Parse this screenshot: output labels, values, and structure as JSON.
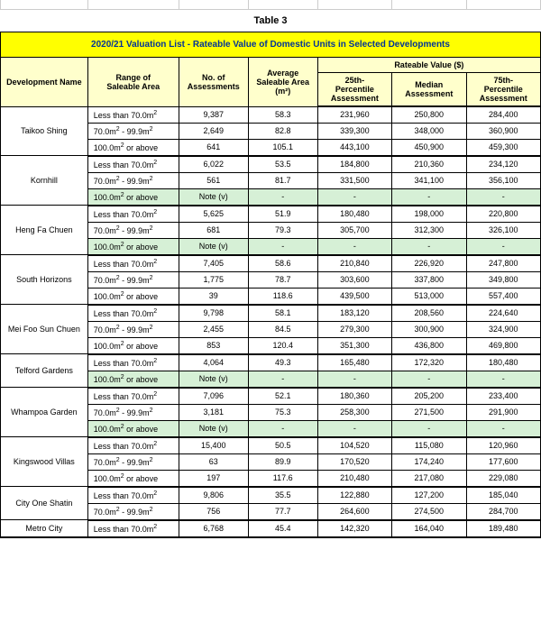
{
  "title": "Table 3",
  "subtitle": "2020/21 Valuation List - Rateable Value of Domestic Units in Selected Developments",
  "headers": {
    "dev": "Development Name",
    "range": "Range of\nSaleable Area",
    "num": "No. of\nAssessments",
    "avg": "Average\nSaleable Area\n(m²)",
    "rv": "Rateable Value ($)",
    "p25": "25th-\nPercentile\nAssessment",
    "med": "Median\nAssessment",
    "p75": "75th-\nPercentile\nAssessment"
  },
  "ranges": {
    "lt70": "Less than 70.0m²",
    "r70_99": "70.0m² - 99.9m²",
    "gte100": "100.0m² or above"
  },
  "note_v": "Note (v)",
  "dash": "-",
  "developments": [
    {
      "name": "Taikoo Shing",
      "rows": [
        {
          "range": "lt70",
          "num": "9,387",
          "avg": "58.3",
          "p25": "231,960",
          "med": "250,800",
          "p75": "284,400"
        },
        {
          "range": "r70_99",
          "num": "2,649",
          "avg": "82.8",
          "p25": "339,300",
          "med": "348,000",
          "p75": "360,900"
        },
        {
          "range": "gte100",
          "num": "641",
          "avg": "105.1",
          "p25": "443,100",
          "med": "450,900",
          "p75": "459,300"
        }
      ]
    },
    {
      "name": "Kornhill",
      "rows": [
        {
          "range": "lt70",
          "num": "6,022",
          "avg": "53.5",
          "p25": "184,800",
          "med": "210,360",
          "p75": "234,120"
        },
        {
          "range": "r70_99",
          "num": "561",
          "avg": "81.7",
          "p25": "331,500",
          "med": "341,100",
          "p75": "356,100"
        },
        {
          "range": "gte100",
          "green": true,
          "num": "Note (v)",
          "avg": "-",
          "p25": "-",
          "med": "-",
          "p75": "-"
        }
      ]
    },
    {
      "name": "Heng Fa Chuen",
      "rows": [
        {
          "range": "lt70",
          "num": "5,625",
          "avg": "51.9",
          "p25": "180,480",
          "med": "198,000",
          "p75": "220,800"
        },
        {
          "range": "r70_99",
          "num": "681",
          "avg": "79.3",
          "p25": "305,700",
          "med": "312,300",
          "p75": "326,100"
        },
        {
          "range": "gte100",
          "green": true,
          "num": "Note (v)",
          "avg": "-",
          "p25": "-",
          "med": "-",
          "p75": "-"
        }
      ]
    },
    {
      "name": "South Horizons",
      "rows": [
        {
          "range": "lt70",
          "num": "7,405",
          "avg": "58.6",
          "p25": "210,840",
          "med": "226,920",
          "p75": "247,800"
        },
        {
          "range": "r70_99",
          "num": "1,775",
          "avg": "78.7",
          "p25": "303,600",
          "med": "337,800",
          "p75": "349,800"
        },
        {
          "range": "gte100",
          "num": "39",
          "avg": "118.6",
          "p25": "439,500",
          "med": "513,000",
          "p75": "557,400"
        }
      ]
    },
    {
      "name": "Mei Foo Sun Chuen",
      "rows": [
        {
          "range": "lt70",
          "num": "9,798",
          "avg": "58.1",
          "p25": "183,120",
          "med": "208,560",
          "p75": "224,640"
        },
        {
          "range": "r70_99",
          "num": "2,455",
          "avg": "84.5",
          "p25": "279,300",
          "med": "300,900",
          "p75": "324,900"
        },
        {
          "range": "gte100",
          "num": "853",
          "avg": "120.4",
          "p25": "351,300",
          "med": "436,800",
          "p75": "469,800"
        }
      ]
    },
    {
      "name": "Telford Gardens",
      "rows": [
        {
          "range": "lt70",
          "num": "4,064",
          "avg": "49.3",
          "p25": "165,480",
          "med": "172,320",
          "p75": "180,480"
        },
        {
          "range": "gte100",
          "green": true,
          "num": "Note (v)",
          "avg": "-",
          "p25": "-",
          "med": "-",
          "p75": "-"
        }
      ]
    },
    {
      "name": "Whampoa Garden",
      "rows": [
        {
          "range": "lt70",
          "num": "7,096",
          "avg": "52.1",
          "p25": "180,360",
          "med": "205,200",
          "p75": "233,400"
        },
        {
          "range": "r70_99",
          "num": "3,181",
          "avg": "75.3",
          "p25": "258,300",
          "med": "271,500",
          "p75": "291,900"
        },
        {
          "range": "gte100",
          "green": true,
          "num": "Note (v)",
          "avg": "-",
          "p25": "-",
          "med": "-",
          "p75": "-"
        }
      ]
    },
    {
      "name": "Kingswood Villas",
      "rows": [
        {
          "range": "lt70",
          "num": "15,400",
          "avg": "50.5",
          "p25": "104,520",
          "med": "115,080",
          "p75": "120,960"
        },
        {
          "range": "r70_99",
          "num": "63",
          "avg": "89.9",
          "p25": "170,520",
          "med": "174,240",
          "p75": "177,600"
        },
        {
          "range": "gte100",
          "num": "197",
          "avg": "117.6",
          "p25": "210,480",
          "med": "217,080",
          "p75": "229,080"
        }
      ]
    },
    {
      "name": "City One Shatin",
      "rows": [
        {
          "range": "lt70",
          "num": "9,806",
          "avg": "35.5",
          "p25": "122,880",
          "med": "127,200",
          "p75": "185,040"
        },
        {
          "range": "r70_99",
          "num": "756",
          "avg": "77.7",
          "p25": "264,600",
          "med": "274,500",
          "p75": "284,700"
        }
      ]
    },
    {
      "name": "Metro City",
      "rows": [
        {
          "range": "lt70",
          "num": "6,768",
          "avg": "45.4",
          "p25": "142,320",
          "med": "164,040",
          "p75": "189,480"
        }
      ]
    }
  ]
}
